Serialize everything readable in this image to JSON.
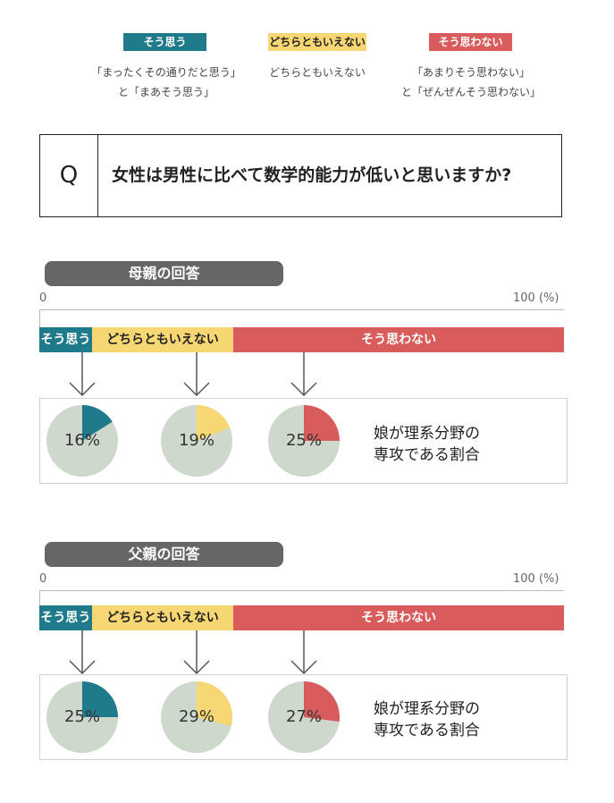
{
  "legend": [
    {
      "badge": "そう思う",
      "desc_lines": [
        "「まったくその通りだと思う」",
        "と「まあそう思う」"
      ],
      "color": "#1f7a8c",
      "text_color": "#ffffff"
    },
    {
      "badge": "どちらともいえない",
      "desc_lines": [
        "どちらともいえない"
      ],
      "color": "#f7d774",
      "text_color": "#222222"
    },
    {
      "badge": "そう思わない",
      "desc_lines": [
        "「あまりそう思わない」",
        "と「ぜんぜんそう思わない」"
      ],
      "color": "#d85c5c",
      "text_color": "#ffffff"
    }
  ],
  "question": {
    "letter": "Q",
    "text": "女性は男性に比べて数学的能力が低いと思いますか?"
  },
  "chart_data": [
    {
      "type": "pie",
      "title": "母親の回答",
      "axis": {
        "min_label": "0",
        "max_label": "100 (%)",
        "range": [
          0,
          100
        ]
      },
      "stack": [
        {
          "label": "そう思う",
          "share": 10
        },
        {
          "label": "どちらともいえない",
          "share": 27
        },
        {
          "label": "そう思わない",
          "share": 63
        }
      ],
      "series_name": "娘が理系分野の専攻である割合",
      "caption_lines": [
        "娘が理系分野の",
        "専攻である割合"
      ],
      "categories": [
        "そう思う",
        "どちらともいえない",
        "そう思わない"
      ],
      "values": [
        16,
        19,
        25
      ],
      "value_labels": [
        "16%",
        "19%",
        "25%"
      ]
    },
    {
      "type": "pie",
      "title": "父親の回答",
      "axis": {
        "min_label": "0",
        "max_label": "100 (%)",
        "range": [
          0,
          100
        ]
      },
      "stack": [
        {
          "label": "そう思う",
          "share": 10
        },
        {
          "label": "どちらともいえない",
          "share": 27
        },
        {
          "label": "そう思わない",
          "share": 63
        }
      ],
      "series_name": "娘が理系分野の専攻である割合",
      "caption_lines": [
        "娘が理系分野の",
        "専攻である割合"
      ],
      "categories": [
        "そう思う",
        "どちらともいえない",
        "そう思わない"
      ],
      "values": [
        25,
        29,
        27
      ],
      "value_labels": [
        "25%",
        "29%",
        "27%"
      ]
    }
  ],
  "colors": {
    "pie_background": "#cfd8cc",
    "arrow": "#555555"
  }
}
